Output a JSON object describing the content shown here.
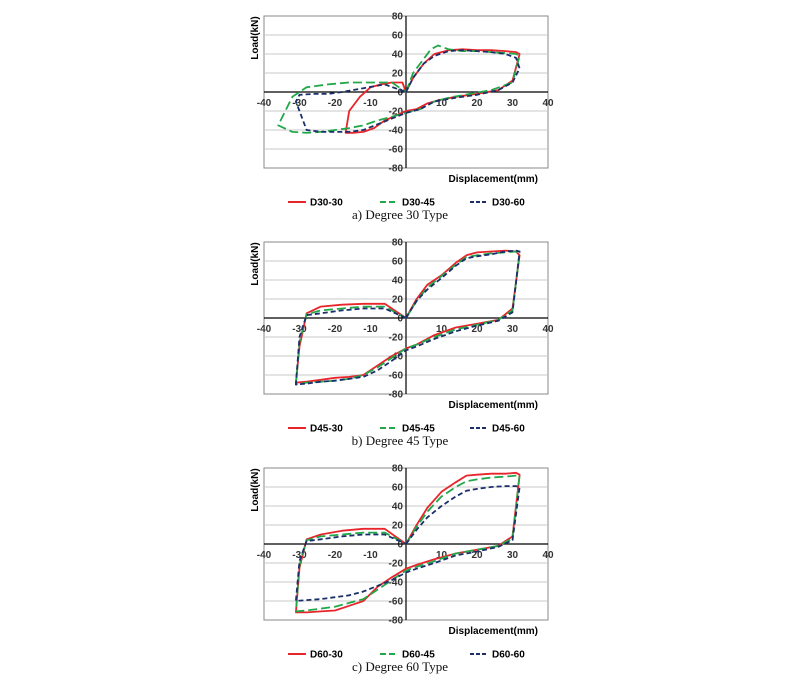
{
  "colors": {
    "series1": "#e8252a",
    "series2": "#22a84a",
    "series3": "#1b2f6b",
    "grid": "#c8c8c8",
    "axis": "#000000"
  },
  "chart_data": [
    {
      "type": "line",
      "caption": "a)  Degree  30  Type",
      "xlabel": "Displacement(mm)",
      "ylabel": "Load(kN)",
      "xlim": [
        -40,
        40
      ],
      "ylim": [
        -80,
        80
      ],
      "xticks": [
        "-40",
        "-30",
        "-20",
        "-10",
        "0",
        "10",
        "20",
        "30",
        "40"
      ],
      "yticks": [
        "80",
        "60",
        "40",
        "20",
        "0",
        "-20",
        "-40",
        "-60",
        "-80"
      ],
      "legend_position": "bottom",
      "series": [
        {
          "name": "D30-30",
          "x": [
            0,
            2,
            5,
            8,
            12,
            16,
            20,
            24,
            28,
            31,
            32,
            30,
            26,
            20,
            14,
            10,
            6,
            3,
            0,
            -3,
            -6,
            -9,
            -12,
            -15,
            -17,
            -16,
            -13,
            -10,
            -7,
            -4,
            -1,
            0
          ],
          "y": [
            0,
            15,
            30,
            40,
            44,
            45,
            44,
            44,
            43,
            42,
            40,
            12,
            2,
            -2,
            -5,
            -8,
            -12,
            -18,
            -20,
            -25,
            -30,
            -38,
            -42,
            -43,
            -43,
            -20,
            -5,
            5,
            8,
            10,
            10,
            0
          ]
        },
        {
          "name": "D30-45",
          "x": [
            0,
            2,
            5,
            7,
            9,
            12,
            16,
            20,
            24,
            28,
            31,
            32,
            30,
            24,
            18,
            12,
            8,
            4,
            0,
            -4,
            -8,
            -12,
            -16,
            -20,
            -24,
            -28,
            -32,
            -36,
            -32,
            -28,
            -22,
            -16,
            -10,
            -4,
            0
          ],
          "y": [
            0,
            20,
            35,
            45,
            49,
            45,
            43,
            43,
            42,
            41,
            40,
            38,
            10,
            2,
            -2,
            -6,
            -10,
            -18,
            -22,
            -26,
            -30,
            -35,
            -38,
            -40,
            -42,
            -43,
            -42,
            -35,
            -5,
            5,
            8,
            10,
            10,
            10,
            0
          ]
        },
        {
          "name": "D30-60",
          "x": [
            0,
            2,
            5,
            8,
            12,
            16,
            20,
            24,
            28,
            31,
            32,
            30,
            26,
            20,
            14,
            8,
            4,
            0,
            -4,
            -8,
            -12,
            -16,
            -20,
            -24,
            -28,
            -31,
            -30,
            -26,
            -22,
            -18,
            -12,
            -6,
            0
          ],
          "y": [
            0,
            15,
            30,
            38,
            43,
            44,
            43,
            42,
            40,
            36,
            25,
            10,
            2,
            -3,
            -6,
            -10,
            -18,
            -22,
            -28,
            -34,
            -40,
            -42,
            -42,
            -42,
            -40,
            -10,
            -3,
            -2,
            -2,
            0,
            4,
            8,
            0
          ]
        }
      ]
    },
    {
      "type": "line",
      "caption": "b)  Degree  45  Type",
      "xlabel": "Displacement(mm)",
      "ylabel": "Load(kN)",
      "xlim": [
        -40,
        40
      ],
      "ylim": [
        -80,
        80
      ],
      "xticks": [
        "-40",
        "-30",
        "-20",
        "-10",
        "0",
        "10",
        "20",
        "30",
        "40"
      ],
      "yticks": [
        "80",
        "60",
        "40",
        "20",
        "0",
        "-20",
        "-40",
        "-60",
        "-80"
      ],
      "legend_position": "bottom",
      "series": [
        {
          "name": "D45-30",
          "x": [
            0,
            3,
            6,
            10,
            14,
            17,
            20,
            24,
            28,
            31,
            32,
            30,
            26,
            20,
            14,
            8,
            3,
            0,
            -4,
            -8,
            -12,
            -16,
            -20,
            -24,
            -28,
            -31,
            -30,
            -28,
            -24,
            -18,
            -12,
            -6,
            0
          ],
          "y": [
            0,
            20,
            35,
            45,
            58,
            66,
            69,
            70,
            71,
            70,
            66,
            10,
            -2,
            -6,
            -10,
            -18,
            -28,
            -32,
            -40,
            -50,
            -60,
            -62,
            -63,
            -65,
            -67,
            -68,
            -30,
            5,
            12,
            14,
            15,
            15,
            0
          ]
        },
        {
          "name": "D45-45",
          "x": [
            0,
            3,
            6,
            10,
            14,
            17,
            20,
            24,
            28,
            31,
            32,
            30,
            26,
            20,
            14,
            8,
            3,
            0,
            -4,
            -8,
            -12,
            -16,
            -20,
            -24,
            -28,
            -31,
            -30,
            -28,
            -24,
            -18,
            -12,
            -6,
            0
          ],
          "y": [
            0,
            18,
            32,
            44,
            56,
            64,
            66,
            68,
            69,
            70,
            68,
            8,
            -2,
            -7,
            -12,
            -20,
            -28,
            -32,
            -42,
            -52,
            -60,
            -64,
            -66,
            -67,
            -68,
            -70,
            -25,
            4,
            8,
            10,
            12,
            12,
            0
          ]
        },
        {
          "name": "D45-60",
          "x": [
            0,
            3,
            6,
            10,
            14,
            17,
            20,
            24,
            28,
            31,
            32,
            30,
            26,
            20,
            14,
            8,
            3,
            0,
            -4,
            -8,
            -12,
            -16,
            -20,
            -24,
            -28,
            -31,
            -30,
            -28,
            -24,
            -18,
            -12,
            -6,
            0
          ],
          "y": [
            0,
            18,
            30,
            42,
            55,
            63,
            65,
            67,
            70,
            71,
            70,
            6,
            -3,
            -8,
            -14,
            -22,
            -30,
            -34,
            -45,
            -55,
            -62,
            -64,
            -66,
            -67,
            -69,
            -70,
            -20,
            3,
            5,
            8,
            10,
            10,
            0
          ]
        }
      ]
    },
    {
      "type": "line",
      "caption": "c)  Degree  60  Type",
      "xlabel": "Displacement(mm)",
      "ylabel": "Load(kN)",
      "xlim": [
        -40,
        40
      ],
      "ylim": [
        -80,
        80
      ],
      "xticks": [
        "-40",
        "-30",
        "-20",
        "-10",
        "0",
        "10",
        "20",
        "30",
        "40"
      ],
      "yticks": [
        "80",
        "60",
        "40",
        "20",
        "0",
        "-20",
        "-40",
        "-60",
        "-80"
      ],
      "legend_position": "bottom",
      "series": [
        {
          "name": "D60-30",
          "x": [
            0,
            3,
            6,
            10,
            14,
            17,
            20,
            24,
            28,
            31,
            32,
            30,
            26,
            20,
            14,
            8,
            3,
            0,
            -4,
            -8,
            -12,
            -16,
            -20,
            -24,
            -28,
            -31,
            -30,
            -28,
            -24,
            -18,
            -12,
            -6,
            0
          ],
          "y": [
            0,
            20,
            38,
            55,
            65,
            72,
            73,
            74,
            74,
            75,
            73,
            8,
            -2,
            -6,
            -10,
            -16,
            -22,
            -26,
            -35,
            -45,
            -60,
            -65,
            -70,
            -71,
            -72,
            -72,
            -25,
            5,
            10,
            14,
            16,
            16,
            0
          ]
        },
        {
          "name": "D60-45",
          "x": [
            0,
            3,
            6,
            10,
            14,
            17,
            20,
            24,
            28,
            31,
            32,
            30,
            26,
            20,
            14,
            8,
            3,
            0,
            -4,
            -8,
            -12,
            -16,
            -20,
            -24,
            -28,
            -31,
            -30,
            -28,
            -24,
            -18,
            -12,
            -6,
            0
          ],
          "y": [
            0,
            18,
            34,
            50,
            60,
            66,
            68,
            70,
            71,
            72,
            72,
            6,
            -2,
            -6,
            -10,
            -18,
            -24,
            -28,
            -38,
            -48,
            -58,
            -62,
            -66,
            -68,
            -70,
            -71,
            -22,
            4,
            8,
            10,
            12,
            12,
            0
          ]
        },
        {
          "name": "D60-60",
          "x": [
            0,
            3,
            6,
            10,
            14,
            17,
            20,
            24,
            28,
            31,
            32,
            30,
            26,
            20,
            14,
            8,
            3,
            0,
            -4,
            -8,
            -12,
            -16,
            -20,
            -24,
            -28,
            -31,
            -30,
            -28,
            -24,
            -18,
            -12,
            -6,
            0
          ],
          "y": [
            0,
            15,
            28,
            40,
            50,
            56,
            58,
            60,
            61,
            61,
            60,
            4,
            -3,
            -8,
            -12,
            -20,
            -26,
            -30,
            -38,
            -44,
            -50,
            -54,
            -56,
            -58,
            -59,
            -60,
            -18,
            3,
            5,
            8,
            10,
            10,
            0
          ]
        }
      ]
    }
  ]
}
